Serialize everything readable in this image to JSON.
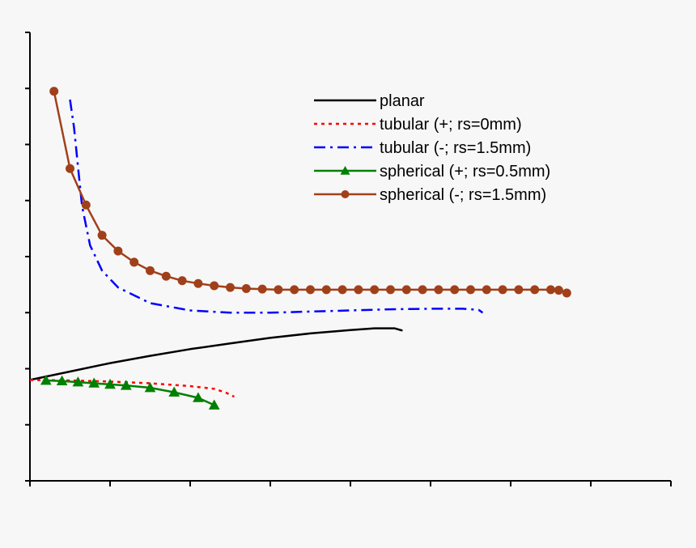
{
  "chart_data": {
    "type": "line",
    "title": "",
    "xlabel": "",
    "ylabel": "",
    "xlim": [
      0,
      8
    ],
    "ylim": [
      0,
      8
    ],
    "x_tick_count": 9,
    "y_tick_count": 9,
    "grid": false,
    "legend_position": "top-right",
    "series": [
      {
        "name": "planar",
        "color": "#000000",
        "dash": "solid",
        "marker": "none",
        "x": [
          0.0,
          0.5,
          1.0,
          1.5,
          2.0,
          2.5,
          3.0,
          3.5,
          4.0,
          4.3,
          4.55,
          4.65
        ],
        "y": [
          1.8,
          1.95,
          2.1,
          2.23,
          2.35,
          2.45,
          2.55,
          2.63,
          2.69,
          2.72,
          2.72,
          2.68
        ]
      },
      {
        "name": "tubular (+; rs=0mm)",
        "color": "#ff0000",
        "dash": "dotted",
        "marker": "none",
        "x": [
          0.0,
          0.5,
          1.0,
          1.5,
          2.0,
          2.3,
          2.45,
          2.55
        ],
        "y": [
          1.8,
          1.79,
          1.77,
          1.74,
          1.69,
          1.64,
          1.57,
          1.5
        ]
      },
      {
        "name": "tubular (-; rs=1.5mm)",
        "color": "#0000ff",
        "dash": "dashdot",
        "marker": "none",
        "x": [
          0.5,
          0.55,
          0.6,
          0.65,
          0.75,
          0.9,
          1.1,
          1.5,
          2.0,
          2.5,
          3.0,
          3.5,
          4.0,
          4.5,
          5.0,
          5.4,
          5.6,
          5.65
        ],
        "y": [
          6.8,
          6.3,
          5.6,
          4.9,
          4.2,
          3.75,
          3.45,
          3.17,
          3.04,
          3.0,
          3.0,
          3.02,
          3.04,
          3.06,
          3.07,
          3.07,
          3.05,
          3.0
        ]
      },
      {
        "name": "spherical (+; rs=0.5mm)",
        "color": "#008000",
        "dash": "solid",
        "marker": "triangle",
        "x": [
          0.2,
          0.4,
          0.6,
          0.8,
          1.0,
          1.2,
          1.5,
          1.8,
          2.1,
          2.3
        ],
        "y": [
          1.79,
          1.78,
          1.76,
          1.74,
          1.72,
          1.7,
          1.66,
          1.58,
          1.48,
          1.35
        ]
      },
      {
        "name": "spherical (-; rs=1.5mm)",
        "color": "#a0401a",
        "dash": "solid",
        "marker": "circle",
        "x": [
          0.3,
          0.5,
          0.7,
          0.9,
          1.1,
          1.3,
          1.5,
          1.7,
          1.9,
          2.1,
          2.3,
          2.5,
          2.7,
          2.9,
          3.1,
          3.3,
          3.5,
          3.7,
          3.9,
          4.1,
          4.3,
          4.5,
          4.7,
          4.9,
          5.1,
          5.3,
          5.5,
          5.7,
          5.9,
          6.1,
          6.3,
          6.5,
          6.6,
          6.7
        ],
        "y": [
          6.95,
          5.57,
          4.92,
          4.38,
          4.1,
          3.9,
          3.75,
          3.65,
          3.57,
          3.52,
          3.48,
          3.45,
          3.43,
          3.42,
          3.41,
          3.41,
          3.41,
          3.41,
          3.41,
          3.41,
          3.41,
          3.41,
          3.41,
          3.41,
          3.41,
          3.41,
          3.41,
          3.41,
          3.41,
          3.41,
          3.41,
          3.41,
          3.4,
          3.35
        ]
      }
    ]
  }
}
